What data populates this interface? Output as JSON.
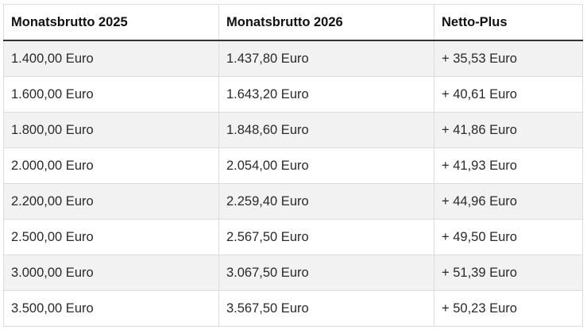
{
  "table": {
    "headers": [
      "Monatsbrutto 2025",
      "Monatsbrutto 2026",
      "Netto-Plus"
    ],
    "rows": [
      [
        "1.400,00 Euro",
        "1.437,80 Euro",
        "+ 35,53 Euro"
      ],
      [
        "1.600,00 Euro",
        "1.643,20 Euro",
        "+ 40,61 Euro"
      ],
      [
        "1.800,00 Euro",
        "1.848,60 Euro",
        "+ 41,86 Euro"
      ],
      [
        "2.000,00 Euro",
        "2.054,00 Euro",
        "+ 41,93 Euro"
      ],
      [
        "2.200,00 Euro",
        "2.259,40 Euro",
        "+ 44,96 Euro"
      ],
      [
        "2.500,00 Euro",
        "2.567,50 Euro",
        "+ 49,50 Euro"
      ],
      [
        "3.000,00 Euro",
        "3.067,50 Euro",
        "+ 51,39 Euro"
      ],
      [
        "3.500,00 Euro",
        "3.567,50 Euro",
        "+ 50,23 Euro"
      ]
    ]
  }
}
